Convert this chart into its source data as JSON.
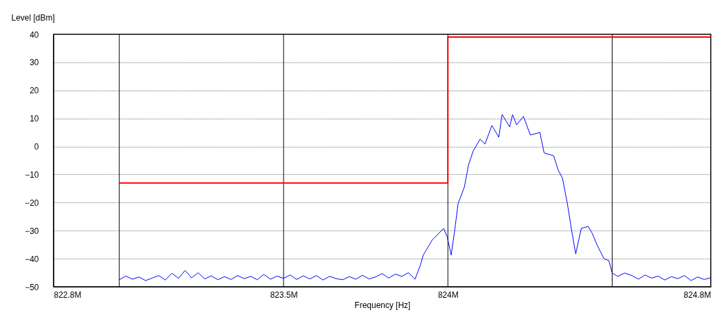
{
  "chart_data": {
    "type": "line",
    "xlabel": "Frequency [Hz]",
    "ylabel": "Level [dBm]",
    "xlim": [
      822.8,
      824.8
    ],
    "xticks": [
      {
        "value": 822.8,
        "label": "822.8M"
      },
      {
        "value": 823,
        "label": null
      },
      {
        "value": 823.5,
        "label": "823.5M"
      },
      {
        "value": 824,
        "label": "824M"
      },
      {
        "value": 824.5,
        "label": null
      },
      {
        "value": 824.8,
        "label": "824.8M"
      }
    ],
    "ylim": [
      -50,
      40
    ],
    "yticks": [
      -50,
      -40,
      -30,
      -20,
      -10,
      0,
      10,
      20,
      30,
      40
    ],
    "grid": true,
    "series": [
      {
        "color": "#0000ff",
        "x": [
          823.0,
          823.02,
          823.04,
          823.06,
          823.08,
          823.1,
          823.12,
          823.14,
          823.16,
          823.18,
          823.2,
          823.22,
          823.24,
          823.26,
          823.28,
          823.3,
          823.32,
          823.34,
          823.36,
          823.38,
          823.4,
          823.42,
          823.44,
          823.46,
          823.48,
          823.5,
          823.52,
          823.54,
          823.56,
          823.58,
          823.6,
          823.62,
          823.64,
          823.66,
          823.68,
          823.7,
          823.72,
          823.74,
          823.76,
          823.78,
          823.8,
          823.82,
          823.84,
          823.86,
          823.88,
          823.9,
          823.916,
          823.925,
          823.952,
          823.987,
          823.998,
          824.01,
          824.021,
          824.031,
          824.05,
          824.063,
          824.077,
          824.098,
          824.113,
          824.134,
          824.155,
          824.165,
          824.188,
          824.197,
          824.209,
          824.23,
          824.251,
          824.28,
          824.293,
          824.322,
          824.335,
          824.349,
          824.364,
          824.377,
          824.389,
          824.406,
          824.427,
          824.439,
          824.454,
          824.475,
          824.49,
          824.5,
          824.517,
          824.538,
          824.56,
          824.58,
          824.6,
          824.62,
          824.64,
          824.66,
          824.68,
          824.7,
          824.72,
          824.74,
          824.76,
          824.78,
          824.8
        ],
        "values": [
          -47.5,
          -46.2,
          -47.3,
          -46.5,
          -47.8,
          -46.9,
          -46.0,
          -47.6,
          -45.2,
          -47.0,
          -44.2,
          -46.8,
          -45.0,
          -47.2,
          -46.1,
          -47.5,
          -46.4,
          -47.4,
          -46.0,
          -47.1,
          -46.3,
          -47.5,
          -45.6,
          -47.3,
          -46.2,
          -47.0,
          -45.8,
          -47.4,
          -46.1,
          -47.2,
          -46.0,
          -47.6,
          -46.3,
          -47.1,
          -47.5,
          -46.4,
          -47.3,
          -45.9,
          -47.2,
          -46.5,
          -45.3,
          -46.9,
          -45.5,
          -46.3,
          -45.0,
          -47.3,
          -42.4,
          -38.7,
          -33.4,
          -29.2,
          -32.2,
          -38.7,
          -29.7,
          -20.4,
          -14.5,
          -6.5,
          -1.6,
          2.6,
          0.9,
          7.5,
          3.3,
          11.4,
          7.0,
          11.4,
          7.7,
          10.7,
          4.1,
          5.0,
          -2.3,
          -3.3,
          -8.2,
          -11.4,
          -20.6,
          -30.2,
          -38.3,
          -29.2,
          -28.5,
          -30.9,
          -35.1,
          -40.0,
          -40.7,
          -45.1,
          -46.3,
          -45.1,
          -46.0,
          -47.3,
          -45.8,
          -46.9,
          -46.2,
          -47.6,
          -46.4,
          -47.1,
          -46.0,
          -47.8,
          -46.5,
          -47.4,
          -46.8
        ]
      },
      {
        "type": "step",
        "color": "#ff0000",
        "x": [
          823.0,
          824.0,
          824.8
        ],
        "values": [
          -13,
          39,
          39
        ]
      }
    ]
  }
}
